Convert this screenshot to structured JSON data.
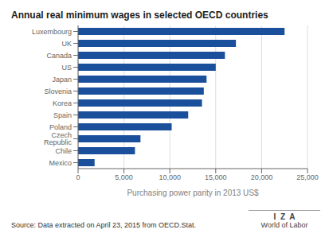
{
  "chart_data": {
    "type": "bar",
    "orientation": "horizontal",
    "title": "Annual real minimum wages in selected OECD countries",
    "x_label": "Purchasing power parity in 2013 US$",
    "categories": [
      "Mexico",
      "Chile",
      "Czech Republic",
      "Poland",
      "Spain",
      "Korea",
      "Slovenia",
      "Japan",
      "US",
      "Canada",
      "UK",
      "Luxembourg"
    ],
    "values": [
      1800,
      6200,
      6800,
      10200,
      12000,
      13500,
      13700,
      14000,
      15000,
      16000,
      17200,
      22500
    ],
    "color": "#1a4f9c",
    "xlim": [
      0,
      25000
    ],
    "xticks": [
      0,
      {
        "value": 5000,
        "label": "5,000"
      },
      {
        "value": 10000,
        "label": "10,000"
      },
      {
        "value": 15000,
        "label": "15,000"
      },
      {
        "value": 20000,
        "label": "20,000"
      },
      {
        "value": 25000,
        "label": "25,000"
      }
    ],
    "grid": true,
    "annotations": [
      "Source: Data extracted on April 23, 2015 from OECD.Stat.",
      "I  Z  A",
      "World of Labor"
    ]
  }
}
